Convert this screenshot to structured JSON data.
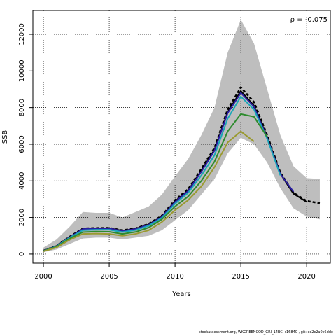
{
  "chart_data": {
    "type": "line",
    "title": "",
    "xlabel": "Years",
    "ylabel": "SSB",
    "xlim": [
      1999.2,
      2021.8
    ],
    "ylim": [
      -500,
      13300
    ],
    "x_ticks": [
      2000,
      2005,
      2010,
      2015,
      2020
    ],
    "y_ticks": [
      0,
      2000,
      4000,
      6000,
      8000,
      10000,
      12000
    ],
    "grid": "dotted",
    "legend": "none",
    "annotation": "ρ = -0.075",
    "band": {
      "name": "",
      "color": "#bebebe",
      "years": [
        2000,
        2001,
        2002,
        2003,
        2004,
        2005,
        2006,
        2007,
        2008,
        2009,
        2010,
        2011,
        2012,
        2013,
        2014,
        2015,
        2016,
        2017,
        2018,
        2019,
        2020,
        2021
      ],
      "lower": [
        100,
        250,
        550,
        850,
        900,
        900,
        800,
        900,
        1000,
        1300,
        1850,
        2400,
        3250,
        4100,
        5500,
        6350,
        6000,
        5000,
        3600,
        2500,
        2050,
        1900
      ],
      "upper": [
        350,
        800,
        1500,
        2300,
        2250,
        2250,
        2000,
        2300,
        2600,
        3250,
        4250,
        5200,
        6500,
        8000,
        11000,
        12800,
        11500,
        9000,
        6500,
        4800,
        4150,
        4100
      ]
    },
    "series": [
      {
        "color": "#000000",
        "width": 2.6,
        "dash": "4,3",
        "x": [
          2000,
          2001,
          2002,
          2003,
          2004,
          2005,
          2006,
          2007,
          2008,
          2009,
          2010,
          2011,
          2012,
          2013,
          2014,
          2015,
          2016,
          2017,
          2018,
          2019,
          2020,
          2021
        ],
        "y": [
          180,
          450,
          950,
          1400,
          1420,
          1430,
          1300,
          1400,
          1650,
          2100,
          2950,
          3550,
          4650,
          5800,
          7900,
          9100,
          8300,
          6500,
          4450,
          3350,
          2900,
          2780
        ]
      },
      {
        "color": "#000000",
        "width": 2.2,
        "dash": "",
        "x": [
          2000,
          2001,
          2002,
          2003,
          2004,
          2005,
          2006,
          2007,
          2008,
          2009,
          2010,
          2011,
          2012,
          2013,
          2014,
          2015,
          2016,
          2017,
          2018,
          2019,
          2020
        ],
        "y": [
          175,
          440,
          930,
          1380,
          1400,
          1410,
          1280,
          1380,
          1620,
          2050,
          2880,
          3480,
          4550,
          5700,
          7750,
          8900,
          8100,
          6400,
          4400,
          3300,
          2850
        ]
      },
      {
        "color": "#2b1fa3",
        "width": 2.0,
        "dash": "",
        "x": [
          2000,
          2001,
          2002,
          2003,
          2004,
          2005,
          2006,
          2007,
          2008,
          2009,
          2010,
          2011,
          2012,
          2013,
          2014,
          2015,
          2016,
          2017,
          2018,
          2019
        ],
        "y": [
          170,
          430,
          920,
          1370,
          1390,
          1400,
          1270,
          1370,
          1600,
          2030,
          2850,
          3450,
          4500,
          5650,
          7700,
          8800,
          8050,
          6350,
          4380,
          3400
        ]
      },
      {
        "color": "#1aa7b8",
        "width": 2.0,
        "dash": "",
        "x": [
          2000,
          2001,
          2002,
          2003,
          2004,
          2005,
          2006,
          2007,
          2008,
          2009,
          2010,
          2011,
          2012,
          2013,
          2014,
          2015,
          2016,
          2017,
          2018
        ],
        "y": [
          165,
          420,
          900,
          1300,
          1330,
          1330,
          1200,
          1310,
          1550,
          1980,
          2750,
          3350,
          4300,
          5400,
          7400,
          8600,
          7900,
          6300,
          4300
        ]
      },
      {
        "color": "#2e8b2e",
        "width": 2.0,
        "dash": "",
        "x": [
          2000,
          2001,
          2002,
          2003,
          2004,
          2005,
          2006,
          2007,
          2008,
          2009,
          2010,
          2011,
          2012,
          2013,
          2014,
          2015,
          2016,
          2017
        ],
        "y": [
          160,
          400,
          850,
          1200,
          1230,
          1220,
          1100,
          1210,
          1450,
          1900,
          2600,
          3150,
          4000,
          5050,
          6700,
          7650,
          7500,
          6400
        ]
      },
      {
        "color": "#9a9a30",
        "width": 2.0,
        "dash": "",
        "x": [
          2000,
          2001,
          2002,
          2003,
          2004,
          2005,
          2006,
          2007,
          2008,
          2009,
          2010,
          2011,
          2012,
          2013,
          2014,
          2015,
          2016
        ],
        "y": [
          150,
          360,
          780,
          1100,
          1120,
          1100,
          1000,
          1100,
          1300,
          1750,
          2400,
          2950,
          3700,
          4750,
          6100,
          6700,
          6150
        ]
      }
    ]
  },
  "footer": "stockassessment.org,  WKGREENCOD_GRI_14BC, r16840 ,  git:  ec2c2a0c6dde"
}
